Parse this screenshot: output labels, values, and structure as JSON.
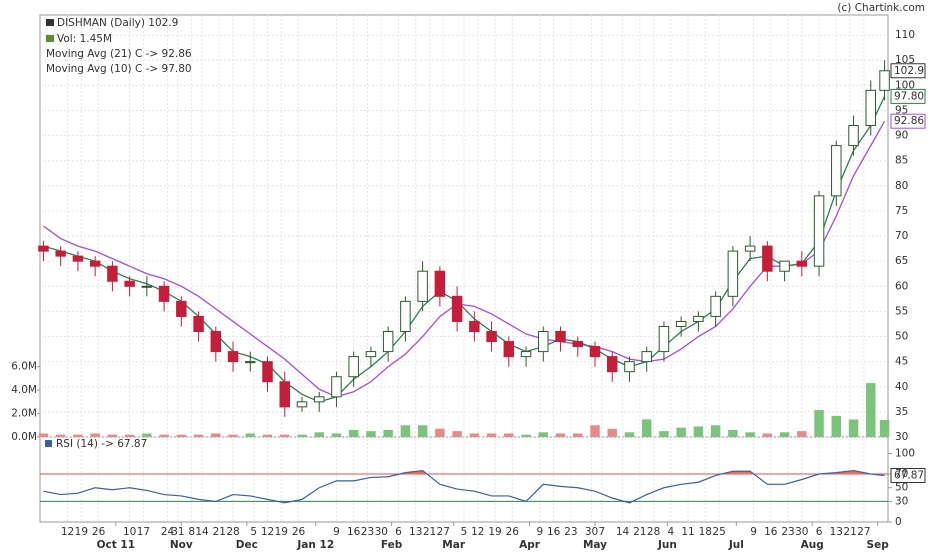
{
  "chart_data": {
    "type": "candlestick",
    "title": "DISHMAN (Daily) 102.9",
    "copyright": "(c) Chartink.com",
    "x": [
      0,
      5,
      10,
      15,
      20,
      25,
      30,
      35,
      40,
      45,
      50,
      55,
      60,
      65,
      70,
      75,
      80,
      85,
      90,
      95,
      100,
      105,
      110,
      115,
      120,
      125,
      130,
      135,
      140,
      145,
      150,
      155,
      160,
      165,
      170,
      175,
      180,
      185,
      190,
      195,
      200,
      205,
      210,
      215,
      220,
      225,
      230,
      235,
      240,
      244
    ],
    "xlim": [
      -1,
      245
    ],
    "xticks": [
      {
        "value": 7,
        "label": "12"
      },
      {
        "value": 11,
        "label": "19"
      },
      {
        "value": 16,
        "label": "26"
      },
      {
        "value": 25,
        "label": "10"
      },
      {
        "value": 29,
        "label": "17"
      },
      {
        "value": 36,
        "label": "24"
      },
      {
        "value": 39,
        "label": "31"
      },
      {
        "value": 43,
        "label": "8"
      },
      {
        "value": 46,
        "label": "14"
      },
      {
        "value": 51,
        "label": "21"
      },
      {
        "value": 55,
        "label": "28"
      },
      {
        "value": 61,
        "label": "5"
      },
      {
        "value": 65,
        "label": "12"
      },
      {
        "value": 69,
        "label": "19"
      },
      {
        "value": 74,
        "label": "26"
      },
      {
        "value": 85,
        "label": "9"
      },
      {
        "value": 90,
        "label": "16"
      },
      {
        "value": 94,
        "label": "23"
      },
      {
        "value": 98,
        "label": "30"
      },
      {
        "value": 103,
        "label": "6"
      },
      {
        "value": 108,
        "label": "13"
      },
      {
        "value": 112,
        "label": "21"
      },
      {
        "value": 116,
        "label": "27"
      },
      {
        "value": 122,
        "label": "5"
      },
      {
        "value": 126,
        "label": "12"
      },
      {
        "value": 131,
        "label": "19"
      },
      {
        "value": 136,
        "label": "26"
      },
      {
        "value": 144,
        "label": "9"
      },
      {
        "value": 148,
        "label": "16"
      },
      {
        "value": 153,
        "label": "23"
      },
      {
        "value": 159,
        "label": "30"
      },
      {
        "value": 162,
        "label": "7"
      },
      {
        "value": 168,
        "label": "14"
      },
      {
        "value": 173,
        "label": "21"
      },
      {
        "value": 177,
        "label": "28"
      },
      {
        "value": 182,
        "label": "4"
      },
      {
        "value": 187,
        "label": "11"
      },
      {
        "value": 192,
        "label": "18"
      },
      {
        "value": 196,
        "label": "25"
      },
      {
        "value": 206,
        "label": "9"
      },
      {
        "value": 211,
        "label": "16"
      },
      {
        "value": 216,
        "label": "23"
      },
      {
        "value": 220,
        "label": "30"
      },
      {
        "value": 225,
        "label": "6"
      },
      {
        "value": 230,
        "label": "13"
      },
      {
        "value": 234,
        "label": "21"
      },
      {
        "value": 238,
        "label": "27"
      }
    ],
    "month_ticks": [
      {
        "value": 21,
        "label": "Oct 11"
      },
      {
        "value": 40,
        "label": "Nov"
      },
      {
        "value": 59,
        "label": "Dec"
      },
      {
        "value": 79,
        "label": "Jan 12"
      },
      {
        "value": 101,
        "label": "Feb"
      },
      {
        "value": 119,
        "label": "Mar"
      },
      {
        "value": 141,
        "label": "Apr"
      },
      {
        "value": 160,
        "label": "May"
      },
      {
        "value": 181,
        "label": "Jun"
      },
      {
        "value": 201,
        "label": "Jul"
      },
      {
        "value": 223,
        "label": "Aug"
      },
      {
        "value": 242,
        "label": "Sep"
      }
    ],
    "open": [
      68,
      67,
      66,
      65,
      64,
      61,
      60,
      60,
      57,
      54,
      51,
      47,
      45,
      45,
      41,
      36,
      37,
      38,
      42,
      46,
      47,
      51,
      57,
      63,
      58,
      53,
      51,
      49,
      46,
      47,
      51,
      49,
      48,
      46,
      43,
      45,
      47,
      52,
      53,
      54,
      58,
      67,
      68,
      63,
      65,
      64,
      78,
      88,
      92,
      99
    ],
    "high": [
      69,
      68,
      67,
      66,
      65,
      62,
      62,
      61,
      58,
      55,
      52,
      49,
      47,
      46,
      43,
      38,
      39,
      43,
      47,
      48,
      52,
      58,
      65,
      64,
      60,
      55,
      53,
      50,
      48,
      52,
      52,
      50,
      49,
      47,
      46,
      48,
      53,
      54,
      55,
      59,
      68,
      70,
      69,
      65,
      67,
      79,
      89,
      94,
      101,
      105
    ],
    "low": [
      65,
      64,
      63,
      62,
      59,
      58,
      58,
      55,
      52,
      49,
      45,
      43,
      43,
      39,
      34,
      35,
      35,
      36,
      40,
      44,
      45,
      49,
      55,
      56,
      51,
      49,
      47,
      44,
      44,
      45,
      47,
      46,
      44,
      41,
      41,
      43,
      45,
      50,
      51,
      52,
      56,
      65,
      61,
      61,
      62,
      62,
      76,
      86,
      90,
      97
    ],
    "close": [
      67,
      66,
      65,
      64,
      61,
      60,
      60,
      57,
      54,
      51,
      47,
      45,
      45,
      41,
      36,
      37,
      38,
      42,
      46,
      47,
      51,
      57,
      63,
      58,
      53,
      51,
      49,
      46,
      47,
      51,
      49,
      48,
      46,
      43,
      45,
      47,
      52,
      53,
      54,
      58,
      67,
      68,
      63,
      65,
      64,
      78,
      88,
      92,
      99,
      102.9
    ],
    "ylim": [
      30,
      114
    ],
    "yticks": [
      30,
      35,
      40,
      45,
      50,
      55,
      60,
      65,
      70,
      75,
      80,
      85,
      90,
      95,
      100,
      105,
      110
    ],
    "grid": true,
    "series": [
      {
        "name": "Moving Avg (21) C -> 92.86",
        "color": "#a64ddb",
        "last_label": "92.86",
        "values": [
          72,
          69.5,
          68,
          67,
          65.5,
          64,
          62.5,
          61.5,
          60,
          58,
          55.5,
          53,
          50.5,
          48,
          45.5,
          42.5,
          39.5,
          38,
          39,
          41,
          44,
          46.5,
          50,
          54,
          56.5,
          56,
          54.5,
          52.5,
          50.5,
          49.5,
          49,
          48.5,
          48,
          47,
          45.5,
          45,
          45.5,
          47.5,
          50,
          52,
          55.5,
          60,
          64,
          64,
          64.5,
          67,
          74,
          82,
          88,
          92.86
        ]
      },
      {
        "name": "Moving Avg (10) C -> 97.80",
        "color": "#2e7d4f",
        "last_label": "97.80",
        "values": [
          68,
          67,
          66,
          65,
          63,
          61.5,
          60.5,
          59,
          57,
          54,
          50.5,
          47,
          46,
          44.5,
          41,
          38.5,
          37,
          38,
          41.5,
          44,
          47,
          51,
          56,
          59,
          57,
          53.5,
          51,
          48.5,
          47,
          48,
          49.5,
          49,
          47.5,
          45.5,
          44,
          45,
          48,
          51,
          53,
          55.5,
          61,
          65.5,
          66,
          64,
          64.5,
          69,
          79,
          87,
          92,
          97.8
        ]
      }
    ],
    "volume": {
      "name": "Vol: 1.45M",
      "values": [
        0.3,
        0.2,
        0.2,
        0.3,
        0.2,
        0.2,
        0.3,
        0.2,
        0.2,
        0.2,
        0.3,
        0.2,
        0.3,
        0.2,
        0.2,
        0.2,
        0.4,
        0.3,
        0.6,
        0.5,
        0.6,
        1.0,
        1.0,
        0.7,
        0.5,
        0.3,
        0.3,
        0.3,
        0.2,
        0.4,
        0.3,
        0.3,
        1.0,
        0.7,
        0.4,
        1.5,
        0.5,
        0.8,
        0.9,
        1.0,
        0.6,
        0.4,
        0.3,
        0.4,
        0.5,
        2.3,
        1.8,
        1.5,
        4.6,
        1.45
      ],
      "ylim": [
        0,
        36
      ],
      "yticks": [
        {
          "value": 0,
          "label": "0.0M"
        },
        {
          "value": 2,
          "label": "2.0M"
        },
        {
          "value": 4,
          "label": "4.0M"
        },
        {
          "value": 6,
          "label": "6.0M"
        }
      ]
    },
    "rsi": {
      "name": "RSI (14) -> 67.87",
      "color": "#3a5f9e",
      "values": [
        45,
        40,
        42,
        50,
        47,
        50,
        46,
        40,
        38,
        33,
        30,
        40,
        38,
        33,
        28,
        33,
        50,
        60,
        60,
        65,
        66,
        72,
        75,
        55,
        48,
        45,
        38,
        38,
        30,
        55,
        52,
        50,
        45,
        35,
        28,
        40,
        50,
        55,
        58,
        68,
        74,
        74,
        55,
        55,
        62,
        70,
        72,
        75,
        70,
        67.87
      ],
      "ylim": [
        0,
        124
      ],
      "yticks": [
        0,
        30,
        50,
        70,
        100
      ],
      "levels": [
        30,
        70
      ]
    }
  }
}
